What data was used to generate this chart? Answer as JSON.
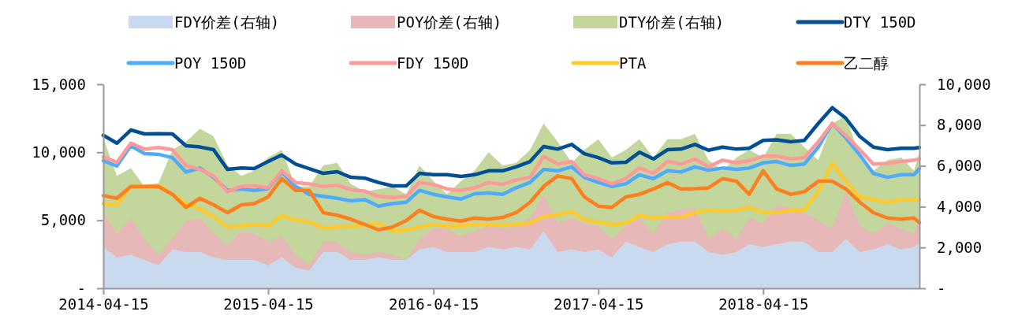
{
  "chart_data": {
    "type": "line",
    "legend": "top",
    "x": [
      "2014-04-15",
      "2014-05-15",
      "2014-06-15",
      "2014-07-15",
      "2014-08-15",
      "2014-09-15",
      "2014-10-15",
      "2014-11-15",
      "2014-12-15",
      "2015-01-15",
      "2015-02-15",
      "2015-03-15",
      "2015-04-15",
      "2015-05-15",
      "2015-06-15",
      "2015-07-15",
      "2015-08-15",
      "2015-09-15",
      "2015-10-15",
      "2015-11-15",
      "2015-12-15",
      "2016-01-15",
      "2016-02-15",
      "2016-03-15",
      "2016-04-15",
      "2016-05-15",
      "2016-06-15",
      "2016-07-15",
      "2016-08-15",
      "2016-09-15",
      "2016-10-15",
      "2016-11-15",
      "2016-12-15",
      "2017-01-15",
      "2017-02-15",
      "2017-03-15",
      "2017-04-15",
      "2017-05-15",
      "2017-06-15",
      "2017-07-15",
      "2017-08-15",
      "2017-09-15",
      "2017-10-15",
      "2017-11-15",
      "2017-12-15",
      "2018-01-15",
      "2018-02-15",
      "2018-03-15",
      "2018-04-15",
      "2018-05-15",
      "2018-06-15",
      "2018-07-15",
      "2018-08-15",
      "2018-09-15",
      "2018-10-15",
      "2018-11-15",
      "2018-12-15",
      "2019-01-15",
      "2019-02-15",
      "2019-03-15",
      "2019-03-27"
    ],
    "xlim": [
      "2014-04-15",
      "2019-03-27"
    ],
    "xticks": [
      "2014-04-15",
      "2015-04-15",
      "2016-04-15",
      "2017-04-15",
      "2018-04-15"
    ],
    "ylim": [
      0,
      15000
    ],
    "yticks": [
      {
        "value": 0,
        "label": "-"
      },
      {
        "value": 5000,
        "label": "5,000"
      },
      {
        "value": 10000,
        "label": "10,000"
      },
      {
        "value": 15000,
        "label": "15,000"
      }
    ],
    "y2lim": [
      0,
      10000
    ],
    "y2ticks": [
      {
        "value": 0,
        "label": "-"
      },
      {
        "value": 2000,
        "label": "2,000"
      },
      {
        "value": 4000,
        "label": "4,000"
      },
      {
        "value": 6000,
        "label": "6,000"
      },
      {
        "value": 8000,
        "label": "8,000"
      },
      {
        "value": 10000,
        "label": "10,000"
      }
    ],
    "series": [
      {
        "name": "FDY价差(右轴)",
        "type": "area",
        "axis": "y2",
        "color": "#c9d9ee",
        "values": [
          2030,
          1520,
          1650,
          1390,
          1130,
          1900,
          1780,
          1780,
          1520,
          1390,
          1390,
          1390,
          1130,
          1520,
          1000,
          880,
          1780,
          1780,
          1390,
          1390,
          1520,
          1390,
          1390,
          1900,
          2030,
          1780,
          1780,
          1780,
          2030,
          1900,
          2030,
          1900,
          2800,
          1780,
          1900,
          1780,
          1900,
          1520,
          2290,
          2030,
          1780,
          2160,
          2290,
          2290,
          1780,
          1650,
          1780,
          2160,
          2030,
          2160,
          2290,
          2290,
          1780,
          1780,
          2420,
          1780,
          1900,
          2160,
          1900,
          2030,
          2220
        ]
      },
      {
        "name": "POY价差(右轴)",
        "type": "area",
        "axis": "y2",
        "color": "#e6b9b8",
        "values": [
          3770,
          2680,
          3450,
          2420,
          1650,
          2420,
          3320,
          3450,
          2680,
          2160,
          2800,
          2680,
          2290,
          2550,
          1650,
          1130,
          2290,
          2290,
          1780,
          1650,
          1780,
          1650,
          1390,
          2420,
          2930,
          2930,
          2550,
          2800,
          3060,
          2930,
          3060,
          3450,
          4600,
          3190,
          3450,
          3190,
          3060,
          2420,
          3060,
          3450,
          2680,
          3710,
          3840,
          3960,
          2420,
          2930,
          2420,
          3450,
          3190,
          4090,
          3960,
          3710,
          3320,
          2930,
          4740,
          3060,
          2680,
          3190,
          2930,
          2680,
          3450
        ]
      },
      {
        "name": "DTY价差(右轴)",
        "type": "area",
        "axis": "y2",
        "color": "#c3d69b",
        "values": [
          7370,
          5510,
          5890,
          4990,
          5140,
          6790,
          7180,
          7820,
          7450,
          6020,
          5510,
          5760,
          6410,
          6790,
          4990,
          4990,
          6020,
          6150,
          5120,
          4740,
          4860,
          4990,
          4600,
          6020,
          5250,
          4600,
          5250,
          5760,
          6670,
          6020,
          6150,
          6790,
          8080,
          7180,
          6150,
          6790,
          7310,
          6410,
          6790,
          7310,
          6410,
          7310,
          7310,
          7570,
          6280,
          5760,
          6410,
          6790,
          6410,
          7570,
          7570,
          6920,
          6280,
          8080,
          8460,
          6410,
          5760,
          6280,
          6410,
          5760,
          6670
        ]
      },
      {
        "name": "DTY 150D",
        "type": "line",
        "color": "#004f95",
        "values": [
          11250,
          10670,
          11640,
          11350,
          11370,
          11350,
          10480,
          10390,
          10190,
          8740,
          8850,
          8800,
          9320,
          9800,
          9130,
          8800,
          8450,
          8570,
          8160,
          8100,
          7780,
          7530,
          7530,
          8450,
          8350,
          8350,
          8220,
          8350,
          8640,
          8640,
          8930,
          9320,
          10420,
          10230,
          10580,
          9900,
          9610,
          9220,
          9260,
          10000,
          9510,
          10190,
          10230,
          10580,
          10150,
          10380,
          10230,
          10290,
          10870,
          10920,
          10770,
          10870,
          12120,
          13280,
          12510,
          11160,
          10380,
          10190,
          10290,
          10290,
          10350
        ]
      },
      {
        "name": "POY 150D",
        "type": "line",
        "color": "#4facfc",
        "values": [
          9380,
          8990,
          10480,
          9900,
          9850,
          9610,
          8550,
          8840,
          8160,
          7200,
          7300,
          7200,
          7330,
          8550,
          7490,
          6910,
          6760,
          6620,
          6430,
          6520,
          6040,
          6230,
          6330,
          7200,
          6910,
          6720,
          6560,
          6950,
          7010,
          6910,
          7390,
          7780,
          8740,
          8640,
          8930,
          8160,
          7780,
          7490,
          7680,
          8350,
          8060,
          8640,
          8550,
          8930,
          8680,
          8840,
          8740,
          8840,
          9220,
          9320,
          9030,
          9130,
          10380,
          12120,
          11060,
          9800,
          8450,
          8160,
          8350,
          8350,
          8800
        ]
      },
      {
        "name": "FDY 150D",
        "type": "line",
        "color": "#ff9a9a",
        "values": [
          9650,
          9260,
          10670,
          10230,
          10350,
          10190,
          9030,
          8740,
          8260,
          7100,
          7490,
          7530,
          7390,
          8640,
          7780,
          7680,
          7490,
          7580,
          7260,
          7140,
          6760,
          6680,
          6760,
          7780,
          7640,
          7300,
          7200,
          7390,
          7780,
          7640,
          7970,
          8160,
          9710,
          9130,
          9320,
          8350,
          8060,
          7680,
          8060,
          8840,
          8450,
          9320,
          9130,
          9510,
          8930,
          9420,
          9220,
          9380,
          9710,
          9710,
          9510,
          9610,
          10770,
          12120,
          11250,
          10190,
          9130,
          9180,
          9320,
          9420,
          9510
        ]
      },
      {
        "name": "PTA",
        "type": "line",
        "color": "#ffca2c",
        "values": [
          6230,
          6140,
          7490,
          7490,
          7580,
          6910,
          6230,
          5850,
          5270,
          4500,
          4590,
          4690,
          4590,
          5330,
          5020,
          4880,
          4440,
          4500,
          4560,
          4630,
          4790,
          4210,
          4300,
          4500,
          4690,
          4590,
          4590,
          4690,
          4630,
          4690,
          4690,
          4790,
          5270,
          5400,
          5660,
          5020,
          4880,
          4690,
          4790,
          5370,
          5170,
          5270,
          5210,
          5560,
          5750,
          5660,
          5750,
          5950,
          5560,
          5560,
          5750,
          5750,
          7100,
          9220,
          7870,
          6720,
          6530,
          6330,
          6520,
          6520,
          6520
        ]
      },
      {
        "name": "乙二醇",
        "type": "line",
        "color": "#ff7f1e",
        "values": [
          6810,
          6620,
          7490,
          7490,
          7490,
          6910,
          5950,
          6620,
          6140,
          5560,
          6140,
          6230,
          6720,
          8070,
          7200,
          7200,
          5560,
          5370,
          5080,
          4690,
          4300,
          4500,
          4980,
          5750,
          5270,
          5080,
          4940,
          5170,
          5080,
          5210,
          5560,
          6330,
          7490,
          8260,
          8060,
          6720,
          6040,
          5950,
          6720,
          6910,
          7300,
          7780,
          7300,
          7330,
          7390,
          8060,
          7870,
          6910,
          8640,
          7300,
          6910,
          7100,
          7870,
          7870,
          7300,
          6330,
          5560,
          5170,
          5080,
          5170,
          4830
        ]
      }
    ]
  }
}
